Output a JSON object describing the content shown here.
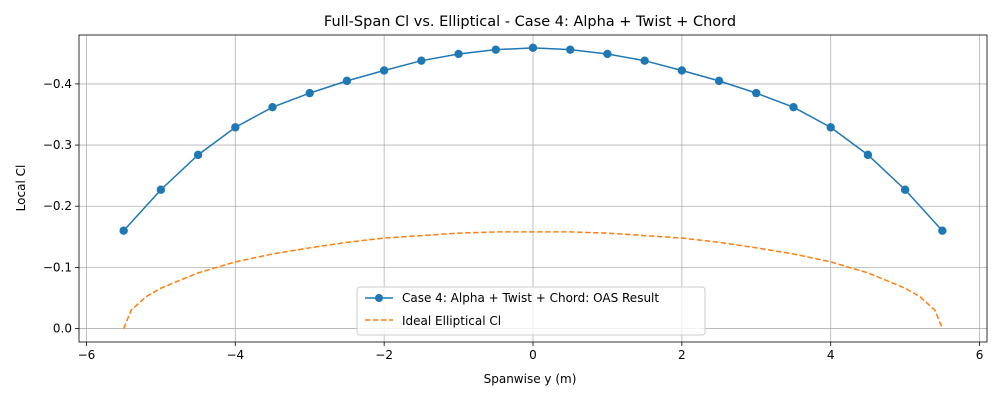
{
  "chart_data": {
    "type": "line",
    "title": "Full-Span Cl vs. Elliptical - Case 4: Alpha + Twist + Chord",
    "xlabel": "Spanwise y (m)",
    "ylabel": "Local Cl",
    "xlim": [
      -6.1,
      6.1
    ],
    "ylim": [
      0.022,
      -0.48
    ],
    "y_axis_inverted": true,
    "grid": true,
    "legend_position": "lower center",
    "x_ticks": [
      -6,
      -4,
      -2,
      0,
      2,
      4,
      6
    ],
    "x_tick_labels": [
      "−6",
      "−4",
      "−2",
      "0",
      "2",
      "4",
      "6"
    ],
    "y_ticks": [
      -0.4,
      -0.3,
      -0.2,
      -0.1,
      0.0
    ],
    "y_tick_labels": [
      "−0.4",
      "−0.3",
      "−0.2",
      "−0.1",
      "0.0"
    ],
    "series": [
      {
        "name": "Case 4: Alpha + Twist + Chord: OAS Result",
        "color": "#1f77b4",
        "style": "solid",
        "marker": "circle",
        "x": [
          -5.5,
          -5.0,
          -4.5,
          -4.0,
          -3.5,
          -3.0,
          -2.5,
          -2.0,
          -1.5,
          -1.0,
          -0.5,
          0.0,
          0.5,
          1.0,
          1.5,
          2.0,
          2.5,
          3.0,
          3.5,
          4.0,
          4.5,
          5.0,
          5.5
        ],
        "y": [
          -0.16,
          -0.227,
          -0.284,
          -0.329,
          -0.362,
          -0.385,
          -0.405,
          -0.422,
          -0.438,
          -0.449,
          -0.456,
          -0.459,
          -0.456,
          -0.449,
          -0.438,
          -0.422,
          -0.405,
          -0.385,
          -0.362,
          -0.329,
          -0.284,
          -0.227,
          -0.16
        ]
      },
      {
        "name": "Ideal Elliptical Cl",
        "color": "#ff7f0e",
        "style": "dashed",
        "marker": "none",
        "x": [
          -5.5,
          -5.4,
          -5.2,
          -5.0,
          -4.5,
          -4.0,
          -3.5,
          -3.0,
          -2.5,
          -2.0,
          -1.5,
          -1.0,
          -0.5,
          0.0,
          0.5,
          1.0,
          1.5,
          2.0,
          2.5,
          3.0,
          3.5,
          4.0,
          4.5,
          5.0,
          5.2,
          5.4,
          5.5
        ],
        "y": [
          0.0,
          -0.03,
          -0.052,
          -0.066,
          -0.091,
          -0.109,
          -0.122,
          -0.132,
          -0.141,
          -0.148,
          -0.152,
          -0.156,
          -0.158,
          -0.158,
          -0.158,
          -0.156,
          -0.152,
          -0.148,
          -0.141,
          -0.132,
          -0.122,
          -0.109,
          -0.091,
          -0.066,
          -0.052,
          -0.03,
          0.0
        ]
      }
    ]
  }
}
